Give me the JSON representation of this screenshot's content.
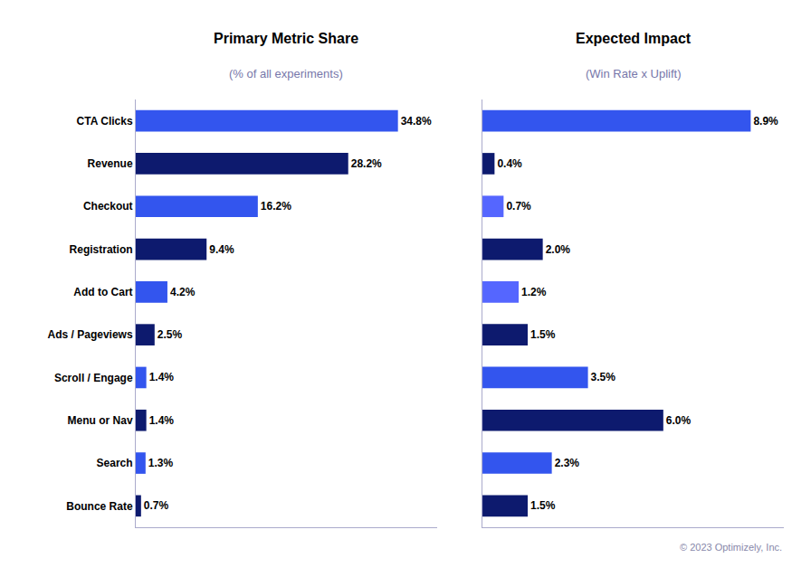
{
  "chart_data": [
    {
      "type": "bar",
      "orientation": "horizontal",
      "title": "Primary Metric Share",
      "subtitle": "(% of all experiments)",
      "categories": [
        "CTA Clicks",
        "Revenue",
        "Checkout",
        "Registration",
        "Add to Cart",
        "Ads / Pageviews",
        "Scroll / Engage",
        "Menu or Nav",
        "Search",
        "Bounce Rate"
      ],
      "values": [
        34.8,
        28.2,
        16.2,
        9.4,
        4.2,
        2.5,
        1.4,
        1.4,
        1.3,
        0.7
      ],
      "value_labels": [
        "34.8%",
        "28.2%",
        "16.2%",
        "9.4%",
        "4.2%",
        "2.5%",
        "1.4%",
        "1.4%",
        "1.3%",
        "0.7%"
      ],
      "colors": [
        "#3355ee",
        "#0d1a6e",
        "#3355ee",
        "#0d1a6e",
        "#3355ee",
        "#0d1a6e",
        "#3355ee",
        "#0d1a6e",
        "#3355ee",
        "#0d1a6e"
      ],
      "xlim": [
        0,
        40
      ],
      "xticks": [],
      "grid": false,
      "data_labels": true,
      "tick_labels": "y"
    },
    {
      "type": "bar",
      "orientation": "horizontal",
      "title": "Expected Impact",
      "subtitle": "(Win Rate x Uplift)",
      "categories": [
        "CTA Clicks",
        "Revenue",
        "Checkout",
        "Registration",
        "Add to Cart",
        "Ads / Pageviews",
        "Scroll / Engage",
        "Menu or Nav",
        "Search",
        "Bounce Rate"
      ],
      "values": [
        8.9,
        0.4,
        0.7,
        2.0,
        1.2,
        1.5,
        3.5,
        6.0,
        2.3,
        1.5
      ],
      "value_labels": [
        "8.9%",
        "0.4%",
        "0.7%",
        "2.0%",
        "1.2%",
        "1.5%",
        "3.5%",
        "6.0%",
        "2.3%",
        "1.5%"
      ],
      "colors": [
        "#3355ee",
        "#0d1a6e",
        "#5566ff",
        "#0d1a6e",
        "#5566ff",
        "#0d1a6e",
        "#3355ee",
        "#0d1a6e",
        "#3355ee",
        "#0d1a6e"
      ],
      "xlim": [
        0,
        10
      ],
      "xticks": [],
      "grid": false,
      "data_labels": true,
      "tick_labels": false,
      "annotations": [
        "© 2023 Optimizely, Inc."
      ]
    }
  ]
}
